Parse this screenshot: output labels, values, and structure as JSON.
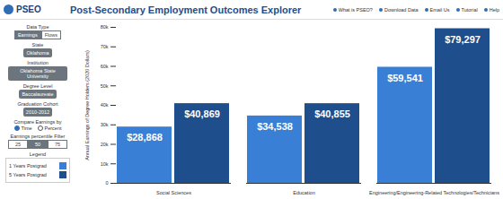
{
  "header": {
    "logo": "PSEO",
    "title": "Post-Secondary Employment Outcomes Explorer",
    "links": [
      "What is PSEO?",
      "Download Data",
      "Email Us",
      "Tutorial",
      "Help"
    ]
  },
  "sidebar": {
    "data_type": {
      "label": "Data Type",
      "options": [
        "Earnings",
        "Flows"
      ],
      "selected": "Earnings"
    },
    "state": {
      "label": "State",
      "value": "Oklahoma"
    },
    "institution": {
      "label": "Institution",
      "value": "Oklahoma State University"
    },
    "degree_level": {
      "label": "Degree Level",
      "value": "Baccalaureate"
    },
    "graduation_cohort": {
      "label": "Graduation Cohort",
      "value": "2010-2012"
    },
    "compare": {
      "label": "Compare Earnings by",
      "options": [
        "Time",
        "Percent"
      ],
      "selected": "Time"
    },
    "percentile": {
      "label": "Earnings percentile Filter",
      "options": [
        "25",
        "50",
        "75"
      ],
      "selected": "50"
    },
    "legend_label": "Legend"
  },
  "chart_data": {
    "type": "bar",
    "y_label": "Annual Earnings of Degree Holders (2020 Dollars)",
    "categories": [
      "Social Sciences",
      "Education",
      "Engineering/Engineering-Related Technologies/Technicians"
    ],
    "series": [
      {
        "name": "1 Years Postgrad",
        "color": "#3a7fd6",
        "values": [
          28868,
          34538,
          59541
        ],
        "value_labels": [
          "$28,868",
          "$34,538",
          "$59,541"
        ]
      },
      {
        "name": "5 Years Postgrad",
        "color": "#1f4e8c",
        "values": [
          40869,
          40855,
          79297
        ],
        "value_labels": [
          "$40,869",
          "$40,855",
          "$79,297"
        ]
      }
    ],
    "ylim": [
      0,
      80000
    ],
    "yticks": [
      0,
      {
        "value": 10000,
        "label": "10k"
      },
      {
        "value": 20000,
        "label": "20k"
      },
      {
        "value": 30000,
        "label": "30k"
      },
      {
        "value": 40000,
        "label": "40k"
      },
      {
        "value": 50000,
        "label": "50k"
      },
      {
        "value": 60000,
        "label": "60k"
      },
      {
        "value": 70000,
        "label": "70k"
      },
      {
        "value": 80000,
        "label": "80k"
      }
    ],
    "grid": false,
    "data_labels": true
  }
}
